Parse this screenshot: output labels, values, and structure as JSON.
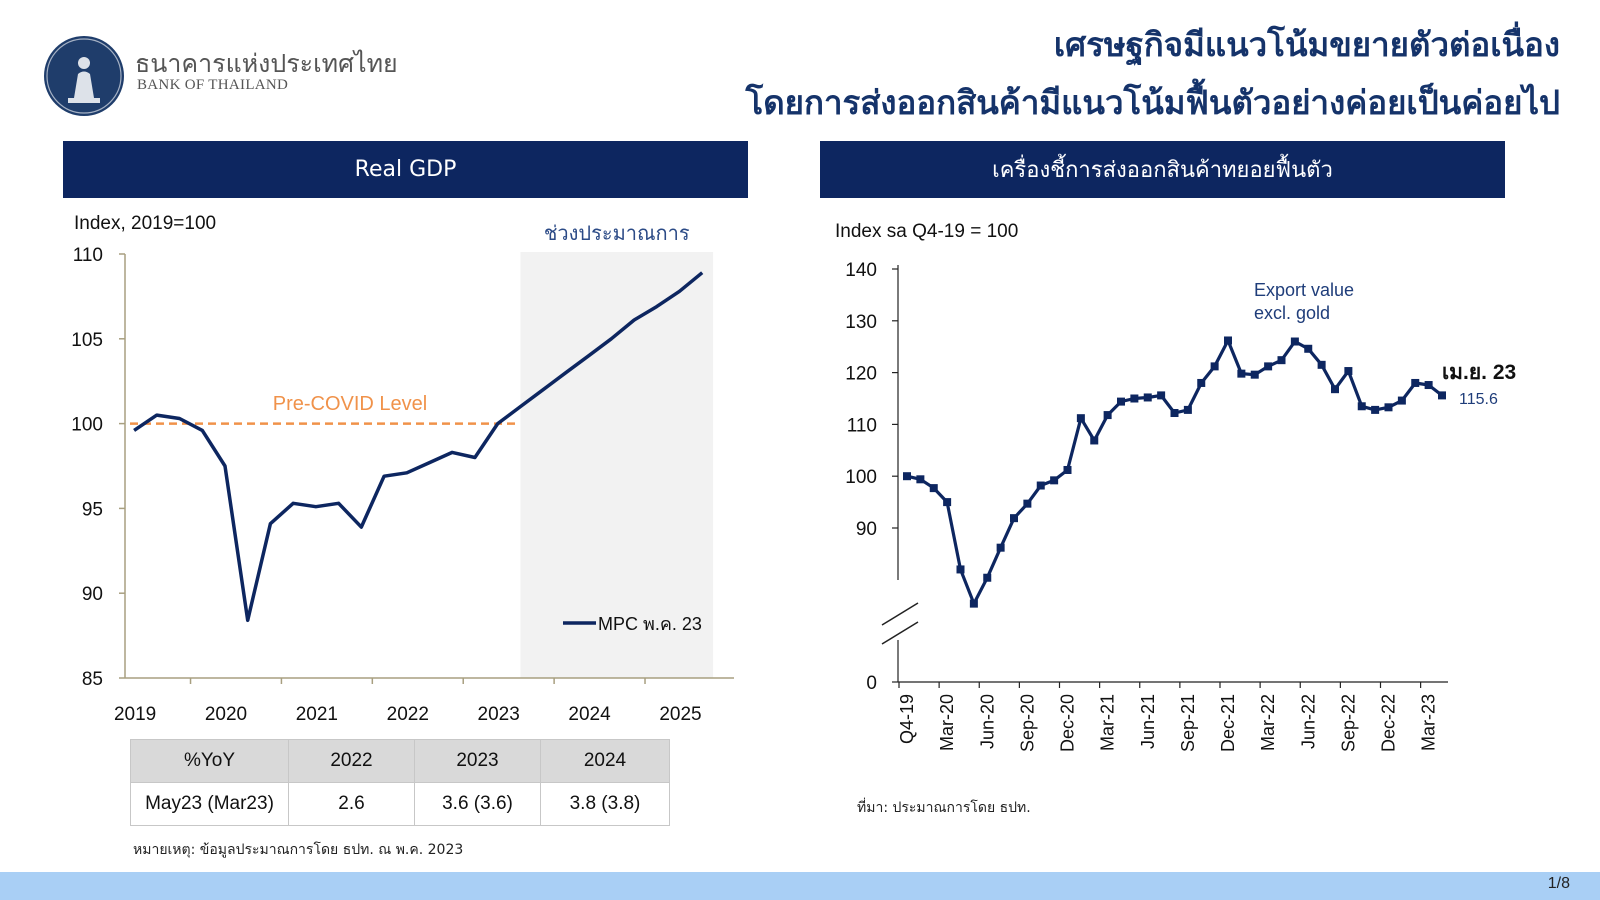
{
  "brand": {
    "name_th": "ธนาคารแห่งประเทศไทย",
    "name_en": "BANK OF THAILAND"
  },
  "title": {
    "line1": "เศรษฐกิจมีแนวโน้มขยายตัวต่อเนื่อง",
    "line2": "โดยการส่งออกสินค้ามีแนวโน้มฟื้นตัวอย่างค่อยเป็นค่อยไป"
  },
  "left_panel": {
    "header": "Real GDP",
    "table": {
      "headers": [
        "%YoY",
        "2022",
        "2023",
        "2024"
      ],
      "row": [
        "May23 (Mar23)",
        "2.6",
        "3.6 (3.6)",
        "3.8 (3.8)"
      ]
    },
    "note": "หมายเหตุ: ข้อมูลประมาณการโดย ธปท. ณ พ.ค. 2023"
  },
  "right_panel": {
    "header": "เครื่องชี้การส่งออกสินค้าทยอยฟื้นตัว",
    "source": "ที่มา: ประมาณการโดย ธปท."
  },
  "page_number": "1/8",
  "chart_data": [
    {
      "type": "line",
      "ylabel": "Index, 2019=100",
      "ylim": [
        85,
        110
      ],
      "y_ticks": [
        85,
        90,
        95,
        100,
        105,
        110
      ],
      "x_ticks": [
        "2019",
        "2020",
        "2021",
        "2022",
        "2023",
        "2024",
        "2025"
      ],
      "forecast_label": "ช่วงประมาณการ",
      "forecast_start": 2023.25,
      "reference_line": {
        "label": "Pre-COVID Level",
        "value": 100,
        "color": "#f0924a"
      },
      "series": [
        {
          "name": "MPC พ.ค. 23",
          "color": "#0d2660",
          "x": [
            2019.0,
            2019.25,
            2019.5,
            2019.75,
            2020.0,
            2020.25,
            2020.5,
            2020.75,
            2021.0,
            2021.25,
            2021.5,
            2021.75,
            2022.0,
            2022.25,
            2022.5,
            2022.75,
            2023.0,
            2023.25,
            2023.5,
            2023.75,
            2024.0,
            2024.25,
            2024.5,
            2024.75,
            2025.0,
            2025.25
          ],
          "y": [
            99.6,
            100.5,
            100.3,
            99.6,
            97.5,
            88.4,
            94.1,
            95.3,
            95.1,
            95.3,
            93.9,
            96.9,
            97.1,
            97.7,
            98.3,
            98.0,
            100.0,
            101.0,
            102.0,
            103.0,
            104.0,
            105.0,
            106.1,
            106.9,
            107.8,
            108.9
          ]
        }
      ]
    },
    {
      "type": "line",
      "ylabel": "Index sa Q4-19 = 100",
      "y_ticks": [
        0,
        90,
        100,
        110,
        120,
        130,
        140
      ],
      "axis_break": true,
      "x_ticks": [
        "Q4-19",
        "Mar-20",
        "Jun-20",
        "Sep-20",
        "Dec-20",
        "Mar-21",
        "Jun-21",
        "Sep-21",
        "Dec-21",
        "Mar-22",
        "Jun-22",
        "Sep-22",
        "Dec-22",
        "Mar-23"
      ],
      "annotation": "Export value\nexcl. gold",
      "end_label": {
        "label": "เม.ย. 23",
        "value": "115.6"
      },
      "series": [
        {
          "name": "Export value excl. gold",
          "color": "#0d2660",
          "values": [
            100.0,
            99.4,
            97.7,
            95.0,
            82.0,
            75.4,
            80.4,
            86.2,
            91.9,
            94.7,
            98.2,
            99.2,
            101.2,
            111.2,
            106.9,
            111.8,
            114.4,
            115.0,
            115.2,
            115.6,
            112.2,
            112.8,
            118.0,
            121.2,
            126.2,
            119.8,
            119.6,
            121.2,
            122.4,
            126.0,
            124.6,
            121.5,
            116.8,
            120.3,
            113.5,
            112.8,
            113.3,
            114.6,
            118.0,
            117.6,
            115.6
          ]
        }
      ]
    }
  ]
}
